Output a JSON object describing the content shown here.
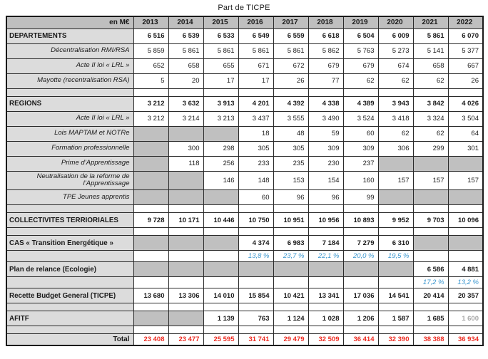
{
  "title": "Part de TICPE",
  "table": {
    "unit_label": "en M€",
    "years": [
      "2013",
      "2014",
      "2015",
      "2016",
      "2017",
      "2018",
      "2019",
      "2020",
      "2021",
      "2022"
    ],
    "rows": [
      {
        "name": "departements",
        "label": "DEPARTEMENTS",
        "type": "section",
        "values": [
          "6 516",
          "6 539",
          "6 533",
          "6 549",
          "6 559",
          "6 618",
          "6 504",
          "6 009",
          "5 861",
          "6 070"
        ]
      },
      {
        "name": "decentralisation-rmi-rsa",
        "label": "Décentralisation RMI/RSA",
        "type": "sub",
        "values": [
          "5 859",
          "5 861",
          "5 861",
          "5 861",
          "5 861",
          "5 862",
          "5 763",
          "5 273",
          "5 141",
          "5 377"
        ]
      },
      {
        "name": "acte-ii-loi-lrl-departements",
        "label": "Acte II loi « LRL »",
        "type": "sub",
        "values": [
          "652",
          "658",
          "655",
          "671",
          "672",
          "679",
          "679",
          "674",
          "658",
          "667"
        ]
      },
      {
        "name": "mayotte-recentralisation-rsa",
        "label": "Mayotte (recentralisation RSA)",
        "type": "sub",
        "values": [
          "5",
          "20",
          "17",
          "17",
          "26",
          "77",
          "62",
          "62",
          "62",
          "26"
        ]
      },
      {
        "name": "separator-1",
        "type": "separator",
        "values": [
          "",
          "",
          "",
          "",
          "",
          "",
          "",
          "",
          "",
          ""
        ]
      },
      {
        "name": "regions",
        "label": "REGIONS",
        "type": "section",
        "values": [
          "3 212",
          "3 632",
          "3 913",
          "4 201",
          "4 392",
          "4 338",
          "4 389",
          "3 943",
          "3 842",
          "4 026"
        ]
      },
      {
        "name": "acte-ii-loi-lrl-regions",
        "label": "Acte II loi « LRL »",
        "type": "sub",
        "values": [
          "3 212",
          "3 214",
          "3 213",
          "3 437",
          "3 555",
          "3 490",
          "3 524",
          "3 418",
          "3 324",
          "3 504"
        ]
      },
      {
        "name": "lois-maptam-et-notre",
        "label": "Lois MAPTAM et NOTRe",
        "type": "sub",
        "values": [
          null,
          null,
          null,
          "18",
          "48",
          "59",
          "60",
          "62",
          "62",
          "64"
        ]
      },
      {
        "name": "formation-professionnelle",
        "label": "Formation professionnelle",
        "type": "sub",
        "values": [
          null,
          "300",
          "298",
          "305",
          "305",
          "309",
          "309",
          "306",
          "299",
          "301"
        ]
      },
      {
        "name": "prime-apprentissage",
        "label": "Prime d’Apprentissage",
        "type": "sub",
        "values": [
          null,
          "118",
          "256",
          "233",
          "235",
          "230",
          "237",
          null,
          null,
          null
        ]
      },
      {
        "name": "neutralisation-reforme-apprentissage",
        "label": "Neutralisation de la reforme de l’Apprentissage",
        "type": "sub",
        "values": [
          null,
          null,
          "146",
          "148",
          "153",
          "154",
          "160",
          "157",
          "157",
          "157"
        ]
      },
      {
        "name": "tpe-jeunes-apprentis",
        "label": "TPE Jeunes apprentis",
        "type": "sub",
        "values": [
          null,
          null,
          null,
          "60",
          "96",
          "96",
          "99",
          null,
          null,
          null
        ]
      },
      {
        "name": "separator-2",
        "type": "separator",
        "values": [
          "",
          "",
          "",
          "",
          "",
          "",
          "",
          "",
          "",
          ""
        ]
      },
      {
        "name": "collectivites-terrioriales",
        "label": "COLLECTIVITES TERRIORIALES",
        "type": "section",
        "values": [
          "9 728",
          "10 171",
          "10 446",
          "10 750",
          "10 951",
          "10 956",
          "10 893",
          "9 952",
          "9 703",
          "10 096"
        ]
      },
      {
        "name": "separator-3",
        "type": "separator",
        "values": [
          "",
          "",
          "",
          "",
          "",
          "",
          "",
          "",
          "",
          ""
        ]
      },
      {
        "name": "cas-transition-energetique",
        "label": "CAS « Transition Energétique »",
        "type": "section",
        "values": [
          null,
          null,
          null,
          "4 374",
          "6 983",
          "7 184",
          "7 279",
          "6 310",
          null,
          null
        ]
      },
      {
        "name": "cas-transition-energetique-pct",
        "label": "",
        "type": "percent",
        "values": [
          "",
          "",
          "",
          "13,8 %",
          "23,7 %",
          "22,1 %",
          "20,0 %",
          "19,5 %",
          "",
          ""
        ]
      },
      {
        "name": "plan-de-relance-ecologie",
        "label": "Plan de relance (Ecologie)",
        "type": "section",
        "values": [
          null,
          null,
          null,
          null,
          null,
          null,
          null,
          null,
          "6 586",
          "4 881"
        ]
      },
      {
        "name": "plan-de-relance-ecologie-pct",
        "label": "",
        "type": "percent",
        "values": [
          "",
          "",
          "",
          "",
          "",
          "",
          "",
          "",
          "17,2 %",
          "13,2 %"
        ]
      },
      {
        "name": "recette-budget-general-ticpe",
        "label": "Recette Budget General (TICPE)",
        "type": "section",
        "values": [
          "13 680",
          "13 306",
          "14 010",
          "15 854",
          "10 421",
          "13 341",
          "17 036",
          "14 541",
          "20 414",
          "20 357"
        ]
      },
      {
        "name": "separator-4",
        "type": "separator",
        "values": [
          "",
          "",
          "",
          "",
          "",
          "",
          "",
          "",
          "",
          ""
        ]
      },
      {
        "name": "afitf",
        "label": "AFITF",
        "type": "section",
        "muted_indices": [
          9
        ],
        "values": [
          null,
          null,
          "1 139",
          "763",
          "1 124",
          "1 028",
          "1 206",
          "1 587",
          "1 685",
          "1 600"
        ]
      },
      {
        "name": "separator-5",
        "type": "separator",
        "values": [
          "",
          "",
          "",
          "",
          "",
          "",
          "",
          "",
          "",
          ""
        ]
      },
      {
        "name": "total",
        "label": "Total",
        "type": "total",
        "values": [
          "23 408",
          "23 477",
          "25 595",
          "31 741",
          "29 479",
          "32 509",
          "36 414",
          "32 390",
          "38 388",
          "36 934"
        ]
      }
    ]
  },
  "colors": {
    "header_bg": "#bfbfbf",
    "label_col_bg": "#dcdcdc",
    "empty_cell_bg": "#c0c0c0",
    "percent_text": "#3b97cf",
    "total_text": "#ee2e24",
    "muted_text": "#a8a8a8"
  }
}
